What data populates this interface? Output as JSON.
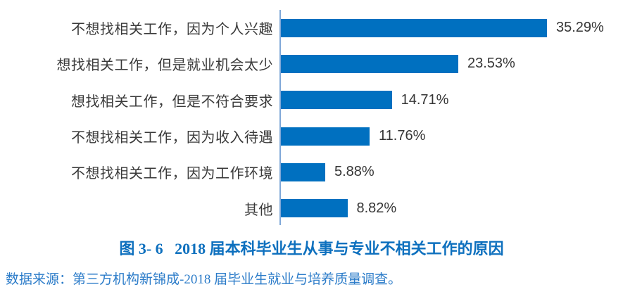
{
  "caption": {
    "text": "图 3- 6   2018 届本科毕业生从事与专业不相关工作的原因"
  },
  "source": {
    "text": "数据来源：第三方机构新锦成-2018 届毕业生就业与培养质量调查。"
  },
  "colors": {
    "bar": "#0070C0",
    "axis_line": "#7FA8D8",
    "category_label": "#3A3A3A",
    "value_label": "#363636",
    "caption": "#0E70BE",
    "source": "#2C7CC9"
  },
  "chart_data": {
    "type": "bar",
    "orientation": "horizontal",
    "title": "图 3- 6   2018 届本科毕业生从事与专业不相关工作的原因",
    "xlabel": "",
    "ylabel": "",
    "categories": [
      "不想找相关工作，因为个人兴趣",
      "想找相关工作，但是就业机会太少",
      "想找相关工作，但是不符合要求",
      "不想找相关工作，因为收入待遇",
      "不想找相关工作，因为工作环境",
      "其他"
    ],
    "values": [
      35.29,
      23.53,
      14.71,
      11.76,
      5.88,
      8.82
    ],
    "value_labels": [
      "35.29%",
      "23.53%",
      "14.71%",
      "11.76%",
      "5.88%",
      "8.82%"
    ],
    "xlim": [
      0,
      37
    ],
    "grid": false,
    "legend": "none",
    "bar_label_position": "outside-end"
  }
}
